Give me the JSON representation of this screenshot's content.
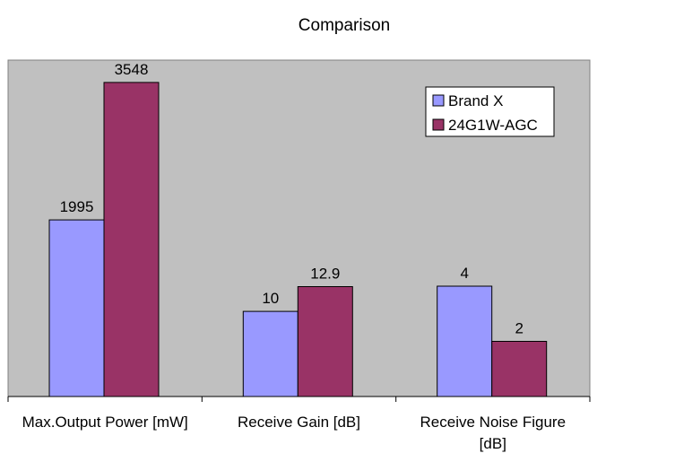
{
  "chart_data": {
    "type": "bar",
    "title": "Comparison",
    "xlabel": "",
    "ylabel": "",
    "categories": [
      [
        "Max.Output Power [mW]"
      ],
      [
        "Receive Gain [dB]"
      ],
      [
        "Receive Noise Figure",
        "[dB]"
      ]
    ],
    "category_scales": [
      3800,
      39.5,
      12.2
    ],
    "series": [
      {
        "name": "Brand X",
        "values": [
          1995,
          10,
          4
        ],
        "labels": [
          "1995",
          "10",
          "4"
        ],
        "color": "#9999ff"
      },
      {
        "name": "24G1W-AGC",
        "values": [
          3548,
          12.9,
          2
        ],
        "labels": [
          "3548",
          "12.9",
          "2"
        ],
        "color": "#993366"
      }
    ],
    "plot_background": "#c0c0c0",
    "grid": false,
    "legend_position": "top-right"
  }
}
